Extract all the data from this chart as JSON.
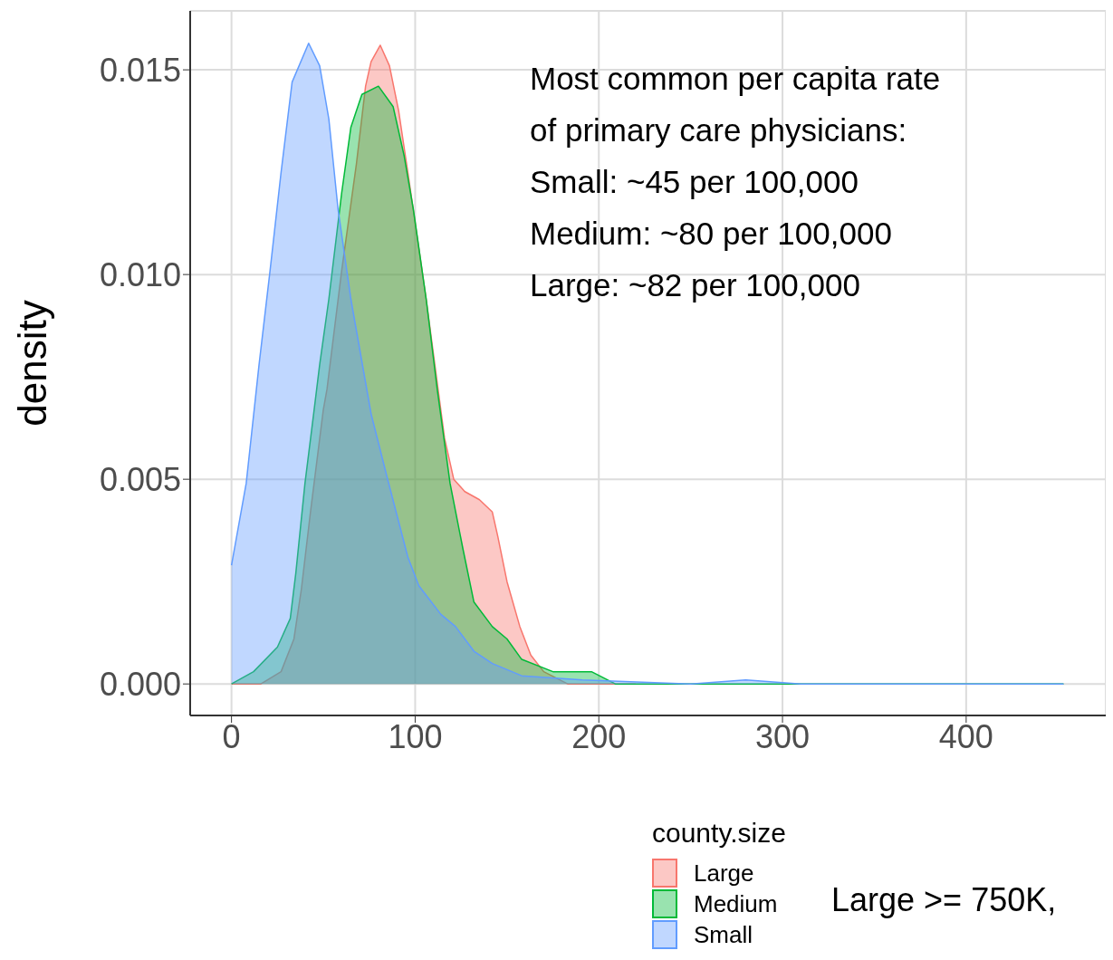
{
  "chart_data": {
    "type": "area",
    "ylabel": "density",
    "legend_title": "county.size",
    "legend": "bottom",
    "grid": true,
    "xlim": [
      -22.5,
      476
    ],
    "xticks": [
      0,
      100,
      200,
      300,
      400
    ],
    "ylim": [
      -0.00077,
      0.01644
    ],
    "yticks": [
      {
        "value": 0,
        "label": "0.000"
      },
      {
        "value": 0.005,
        "label": "0.005"
      },
      {
        "value": 0.01,
        "label": "0.010"
      },
      {
        "value": 0.015,
        "label": "0.015"
      }
    ],
    "annotations": [
      "Most common per capita rate",
      "of primary care physicians:",
      "Small: ~45 per 100,000",
      "Medium: ~80 per 100,000",
      "Large: ~82 per 100,000",
      "Large >= 750K,"
    ],
    "series": [
      {
        "name": "Large",
        "color": "#f8766d",
        "x": [
          0,
          16,
          27,
          34,
          38,
          43,
          50,
          52,
          60,
          68,
          73,
          76,
          81,
          86,
          91,
          96,
          106,
          116,
          121,
          127,
          135,
          142,
          145,
          150,
          157,
          163,
          170,
          183,
          220
        ],
        "values": [
          0,
          0,
          0.0003,
          0.0011,
          0.0023,
          0.0042,
          0.0067,
          0.0072,
          0.0101,
          0.0127,
          0.0146,
          0.0152,
          0.0156,
          0.0151,
          0.014,
          0.0125,
          0.0094,
          0.006,
          0.005,
          0.0047,
          0.0045,
          0.0042,
          0.0036,
          0.0025,
          0.0014,
          0.0007,
          0.0003,
          0,
          0
        ]
      },
      {
        "name": "Medium",
        "color": "#00ba38",
        "x": [
          0,
          12,
          25,
          32,
          35,
          40,
          45,
          48,
          53,
          60,
          65,
          71,
          80,
          88,
          94,
          99,
          106,
          112,
          119,
          126,
          132,
          142,
          150,
          158,
          175,
          196,
          209,
          230,
          453
        ],
        "values": [
          0,
          0.0003,
          0.0009,
          0.0016,
          0.0027,
          0.0049,
          0.0067,
          0.0078,
          0.0094,
          0.012,
          0.0136,
          0.0144,
          0.0146,
          0.0141,
          0.0129,
          0.0116,
          0.0094,
          0.0072,
          0.0049,
          0.0033,
          0.002,
          0.0014,
          0.0011,
          0.0006,
          0.0003,
          0.0003,
          0,
          0,
          0
        ]
      },
      {
        "name": "Small",
        "color": "#619cff",
        "x": [
          0,
          8,
          15,
          21,
          27,
          33,
          42,
          48,
          53,
          58,
          65,
          76,
          85,
          96,
          102,
          114,
          122,
          132,
          142,
          158,
          191,
          250,
          280,
          310,
          453
        ],
        "values": [
          0.0029,
          0.0049,
          0.0078,
          0.0101,
          0.0125,
          0.0147,
          0.01565,
          0.0151,
          0.0138,
          0.0116,
          0.0094,
          0.0066,
          0.005,
          0.0031,
          0.0024,
          0.0017,
          0.0014,
          0.0008,
          0.0005,
          0.0002,
          0.0001,
          0,
          0.0001,
          0,
          0
        ]
      }
    ]
  }
}
